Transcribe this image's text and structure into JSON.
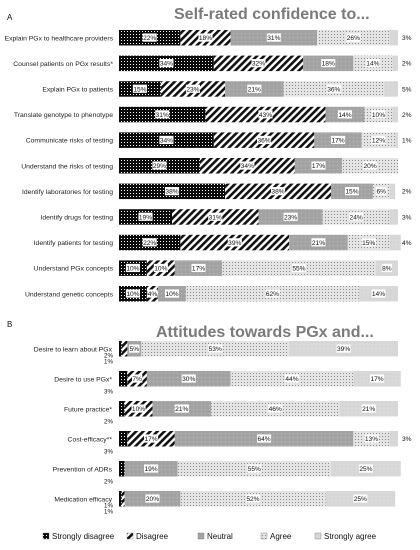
{
  "panels": [
    {
      "letter": "A",
      "title": "Self-rated confidence to...",
      "chart_data": {
        "type": "bar",
        "orientation": "horizontal",
        "stacked": true,
        "xlim": [
          0,
          100
        ],
        "categories": [
          "Explain PGx to healthcare providers",
          "Counsel patients on PGx results*",
          "Explain PGx to patients",
          "Translate genotype to phenotype",
          "Communicate risks of testing",
          "Understand the risks of testing",
          "Identify laboratories for testing",
          "Identify drugs for testing",
          "Identify patients for testing",
          "Understand PGx concepts",
          "Understand genetic concepts"
        ],
        "series": [
          {
            "name": "Strongly disagree",
            "values": [
              22,
              34,
              15,
              31,
              34,
              29,
              38,
              19,
              22,
              10,
              10
            ]
          },
          {
            "name": "Disagree",
            "values": [
              18,
              32,
              23,
              43,
              36,
              34,
              38,
              31,
              39,
              10,
              4
            ]
          },
          {
            "name": "Neutral",
            "values": [
              31,
              18,
              21,
              14,
              17,
              17,
              15,
              23,
              21,
              17,
              10
            ]
          },
          {
            "name": "Agree",
            "values": [
              26,
              14,
              36,
              10,
              12,
              20,
              6,
              24,
              15,
              55,
              62
            ]
          },
          {
            "name": "Strongly agree",
            "values": [
              3,
              2,
              5,
              2,
              1,
              0,
              2,
              3,
              4,
              8,
              14
            ]
          }
        ],
        "labels": [
          [
            "22%",
            "18%",
            "31%",
            "26%",
            "3%"
          ],
          [
            "34%",
            "32%",
            "18%",
            "14%",
            "2%"
          ],
          [
            "15%",
            "23%",
            "21%",
            "36%",
            "5%"
          ],
          [
            "31%",
            "43%",
            "14%",
            "10%",
            "2%"
          ],
          [
            "34%",
            "36%",
            "17%",
            "12%",
            "1%"
          ],
          [
            "29%",
            "34%",
            "17%",
            "20%",
            ""
          ],
          [
            "38%",
            "38%",
            "15%",
            "6%",
            "2%"
          ],
          [
            "19%",
            "31%",
            "23%",
            "24%",
            "3%"
          ],
          [
            "22%",
            "39%",
            "21%",
            "15%",
            "4%"
          ],
          [
            "10%",
            "10%",
            "17%",
            "55%",
            "8%"
          ],
          [
            "10%",
            "4%",
            "10%",
            "62%",
            "14%"
          ]
        ]
      }
    },
    {
      "letter": "B",
      "title": "Attitudes towards PGx and...",
      "chart_data": {
        "type": "bar",
        "orientation": "horizontal",
        "stacked": true,
        "xlim": [
          0,
          100
        ],
        "categories": [
          "Desire to learn about PGx",
          "Desire to use PGx*",
          "Future practice*",
          "Cost-efficacy**",
          "Prevention of ADRs",
          "Medication efficacy"
        ],
        "series": [
          {
            "name": "Strongly disagree",
            "values": [
              1,
              3,
              2,
              3,
              2,
              1
            ]
          },
          {
            "name": "Disagree",
            "values": [
              2,
              7,
              10,
              17,
              0,
              1
            ]
          },
          {
            "name": "Neutral",
            "values": [
              5,
              30,
              21,
              64,
              19,
              20
            ]
          },
          {
            "name": "Agree",
            "values": [
              53,
              44,
              46,
              13,
              55,
              52
            ]
          },
          {
            "name": "Strongly agree",
            "values": [
              39,
              17,
              21,
              3,
              25,
              25
            ]
          }
        ],
        "labels": [
          [
            "1%",
            "2%",
            "5%",
            "53%",
            "39%"
          ],
          [
            "3%",
            "7%",
            "30%",
            "44%",
            "17%"
          ],
          [
            "2%",
            "10%",
            "21%",
            "46%",
            "21%"
          ],
          [
            "3%",
            "17%",
            "64%",
            "13%",
            "3%"
          ],
          [
            "2%",
            "",
            "19%",
            "55%",
            "25%"
          ],
          [
            "1%",
            "1%",
            "20%",
            "52%",
            "25%"
          ]
        ]
      }
    }
  ],
  "legend": [
    "Strongly disagree",
    "Disagree",
    "Neutral",
    "Agree",
    "Strongly agree"
  ]
}
